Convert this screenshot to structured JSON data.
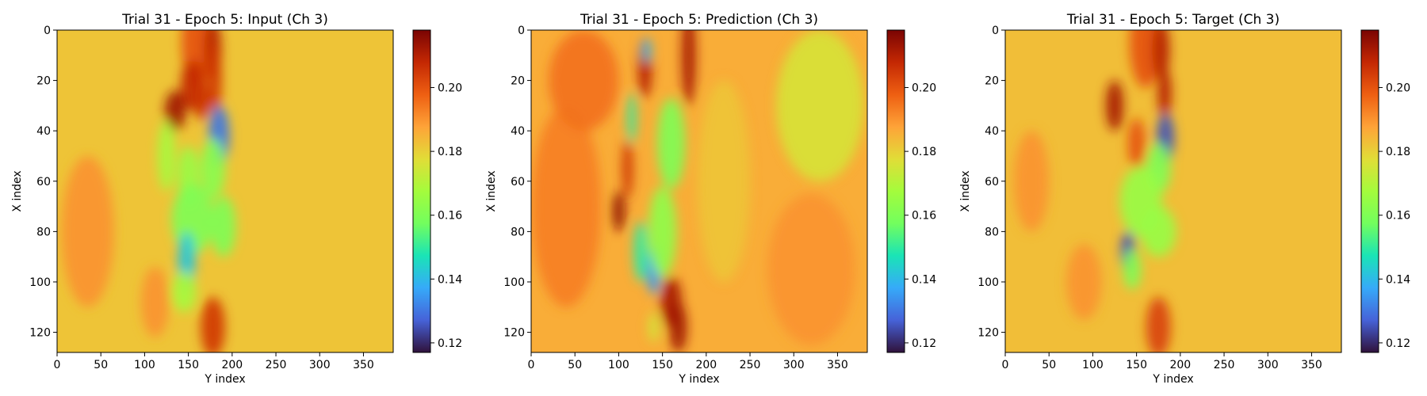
{
  "colormap": "turbo",
  "chart_data": [
    {
      "type": "heatmap",
      "title": "Trial 31 - Epoch 5: Input (Ch 3)",
      "xlabel": "Y index",
      "ylabel": "X index",
      "xlim": [
        0,
        384
      ],
      "ylim": [
        128,
        0
      ],
      "x_ticks": [
        0,
        50,
        100,
        150,
        200,
        250,
        300,
        350
      ],
      "y_ticks": [
        0,
        20,
        40,
        60,
        80,
        100,
        120
      ],
      "colorbar": {
        "min": 0.117,
        "max": 0.218,
        "ticks": [
          0.12,
          0.14,
          0.16,
          0.18,
          0.2
        ],
        "tick_labels": [
          "0.12",
          "0.14",
          "0.16",
          "0.18",
          "0.20"
        ]
      },
      "background_value": 0.182,
      "features": [
        {
          "x": 160,
          "y": 5,
          "rx": 18,
          "ry": 18,
          "value": 0.2
        },
        {
          "x": 178,
          "y": 8,
          "rx": 10,
          "ry": 12,
          "value": 0.21
        },
        {
          "x": 155,
          "y": 22,
          "rx": 14,
          "ry": 10,
          "value": 0.208
        },
        {
          "x": 135,
          "y": 32,
          "rx": 12,
          "ry": 8,
          "value": 0.213
        },
        {
          "x": 165,
          "y": 28,
          "rx": 8,
          "ry": 8,
          "value": 0.206
        },
        {
          "x": 180,
          "y": 20,
          "rx": 8,
          "ry": 16,
          "value": 0.205
        },
        {
          "x": 185,
          "y": 42,
          "rx": 12,
          "ry": 12,
          "value": 0.13
        },
        {
          "x": 178,
          "y": 55,
          "rx": 14,
          "ry": 12,
          "value": 0.162
        },
        {
          "x": 125,
          "y": 50,
          "rx": 10,
          "ry": 14,
          "value": 0.168
        },
        {
          "x": 150,
          "y": 58,
          "rx": 12,
          "ry": 12,
          "value": 0.165
        },
        {
          "x": 155,
          "y": 75,
          "rx": 24,
          "ry": 14,
          "value": 0.16
        },
        {
          "x": 190,
          "y": 78,
          "rx": 14,
          "ry": 12,
          "value": 0.16
        },
        {
          "x": 148,
          "y": 92,
          "rx": 10,
          "ry": 12,
          "value": 0.142
        },
        {
          "x": 145,
          "y": 104,
          "rx": 14,
          "ry": 8,
          "value": 0.168
        },
        {
          "x": 178,
          "y": 118,
          "rx": 14,
          "ry": 12,
          "value": 0.205
        },
        {
          "x": 112,
          "y": 108,
          "rx": 16,
          "ry": 14,
          "value": 0.19
        },
        {
          "x": 35,
          "y": 80,
          "rx": 30,
          "ry": 30,
          "value": 0.19
        }
      ]
    },
    {
      "type": "heatmap",
      "title": "Trial 31 - Epoch 5: Prediction (Ch 3)",
      "xlabel": "Y index",
      "ylabel": "X index",
      "xlim": [
        0,
        384
      ],
      "ylim": [
        128,
        0
      ],
      "x_ticks": [
        0,
        50,
        100,
        150,
        200,
        250,
        300,
        350
      ],
      "y_ticks": [
        0,
        20,
        40,
        60,
        80,
        100,
        120
      ],
      "colorbar": {
        "min": 0.117,
        "max": 0.218,
        "ticks": [
          0.12,
          0.14,
          0.16,
          0.18,
          0.2
        ],
        "tick_labels": [
          "0.12",
          "0.14",
          "0.16",
          "0.18",
          "0.20"
        ]
      },
      "background_value": 0.186,
      "features": [
        {
          "x": 180,
          "y": 10,
          "rx": 8,
          "ry": 20,
          "value": 0.212
        },
        {
          "x": 130,
          "y": 15,
          "rx": 8,
          "ry": 12,
          "value": 0.21
        },
        {
          "x": 132,
          "y": 8,
          "rx": 5,
          "ry": 5,
          "value": 0.14
        },
        {
          "x": 115,
          "y": 35,
          "rx": 5,
          "ry": 10,
          "value": 0.15
        },
        {
          "x": 110,
          "y": 55,
          "rx": 6,
          "ry": 12,
          "value": 0.206
        },
        {
          "x": 100,
          "y": 72,
          "rx": 7,
          "ry": 8,
          "value": 0.215
        },
        {
          "x": 125,
          "y": 88,
          "rx": 8,
          "ry": 12,
          "value": 0.15
        },
        {
          "x": 140,
          "y": 95,
          "rx": 8,
          "ry": 10,
          "value": 0.135
        },
        {
          "x": 160,
          "y": 45,
          "rx": 16,
          "ry": 18,
          "value": 0.16
        },
        {
          "x": 150,
          "y": 80,
          "rx": 16,
          "ry": 18,
          "value": 0.163
        },
        {
          "x": 160,
          "y": 108,
          "rx": 12,
          "ry": 10,
          "value": 0.212
        },
        {
          "x": 168,
          "y": 118,
          "rx": 10,
          "ry": 10,
          "value": 0.213
        },
        {
          "x": 140,
          "y": 118,
          "rx": 6,
          "ry": 6,
          "value": 0.175
        },
        {
          "x": 40,
          "y": 70,
          "rx": 40,
          "ry": 40,
          "value": 0.193
        },
        {
          "x": 60,
          "y": 20,
          "rx": 40,
          "ry": 20,
          "value": 0.195
        },
        {
          "x": 220,
          "y": 60,
          "rx": 30,
          "ry": 40,
          "value": 0.182
        },
        {
          "x": 330,
          "y": 30,
          "rx": 50,
          "ry": 30,
          "value": 0.176
        },
        {
          "x": 320,
          "y": 95,
          "rx": 50,
          "ry": 30,
          "value": 0.19
        }
      ]
    },
    {
      "type": "heatmap",
      "title": "Trial 31 - Epoch 5: Target (Ch 3)",
      "xlabel": "Y index",
      "ylabel": "X index",
      "xlim": [
        0,
        384
      ],
      "ylim": [
        128,
        0
      ],
      "x_ticks": [
        0,
        50,
        100,
        150,
        200,
        250,
        300,
        350
      ],
      "y_ticks": [
        0,
        20,
        40,
        60,
        80,
        100,
        120
      ],
      "colorbar": {
        "min": 0.117,
        "max": 0.218,
        "ticks": [
          0.12,
          0.14,
          0.16,
          0.18,
          0.2
        ],
        "tick_labels": [
          "0.12",
          "0.14",
          "0.16",
          "0.18",
          "0.20"
        ]
      },
      "background_value": 0.183,
      "features": [
        {
          "x": 160,
          "y": 5,
          "rx": 18,
          "ry": 18,
          "value": 0.2
        },
        {
          "x": 178,
          "y": 8,
          "rx": 10,
          "ry": 12,
          "value": 0.21
        },
        {
          "x": 125,
          "y": 30,
          "rx": 10,
          "ry": 10,
          "value": 0.212
        },
        {
          "x": 182,
          "y": 25,
          "rx": 8,
          "ry": 10,
          "value": 0.21
        },
        {
          "x": 150,
          "y": 45,
          "rx": 10,
          "ry": 10,
          "value": 0.2
        },
        {
          "x": 183,
          "y": 43,
          "rx": 10,
          "ry": 10,
          "value": 0.125
        },
        {
          "x": 175,
          "y": 55,
          "rx": 14,
          "ry": 10,
          "value": 0.16
        },
        {
          "x": 155,
          "y": 68,
          "rx": 24,
          "ry": 14,
          "value": 0.165
        },
        {
          "x": 175,
          "y": 80,
          "rx": 20,
          "ry": 10,
          "value": 0.165
        },
        {
          "x": 140,
          "y": 88,
          "rx": 8,
          "ry": 8,
          "value": 0.125
        },
        {
          "x": 145,
          "y": 95,
          "rx": 10,
          "ry": 8,
          "value": 0.16
        },
        {
          "x": 175,
          "y": 118,
          "rx": 14,
          "ry": 12,
          "value": 0.203
        },
        {
          "x": 30,
          "y": 60,
          "rx": 20,
          "ry": 20,
          "value": 0.19
        },
        {
          "x": 90,
          "y": 100,
          "rx": 20,
          "ry": 15,
          "value": 0.19
        }
      ]
    }
  ]
}
